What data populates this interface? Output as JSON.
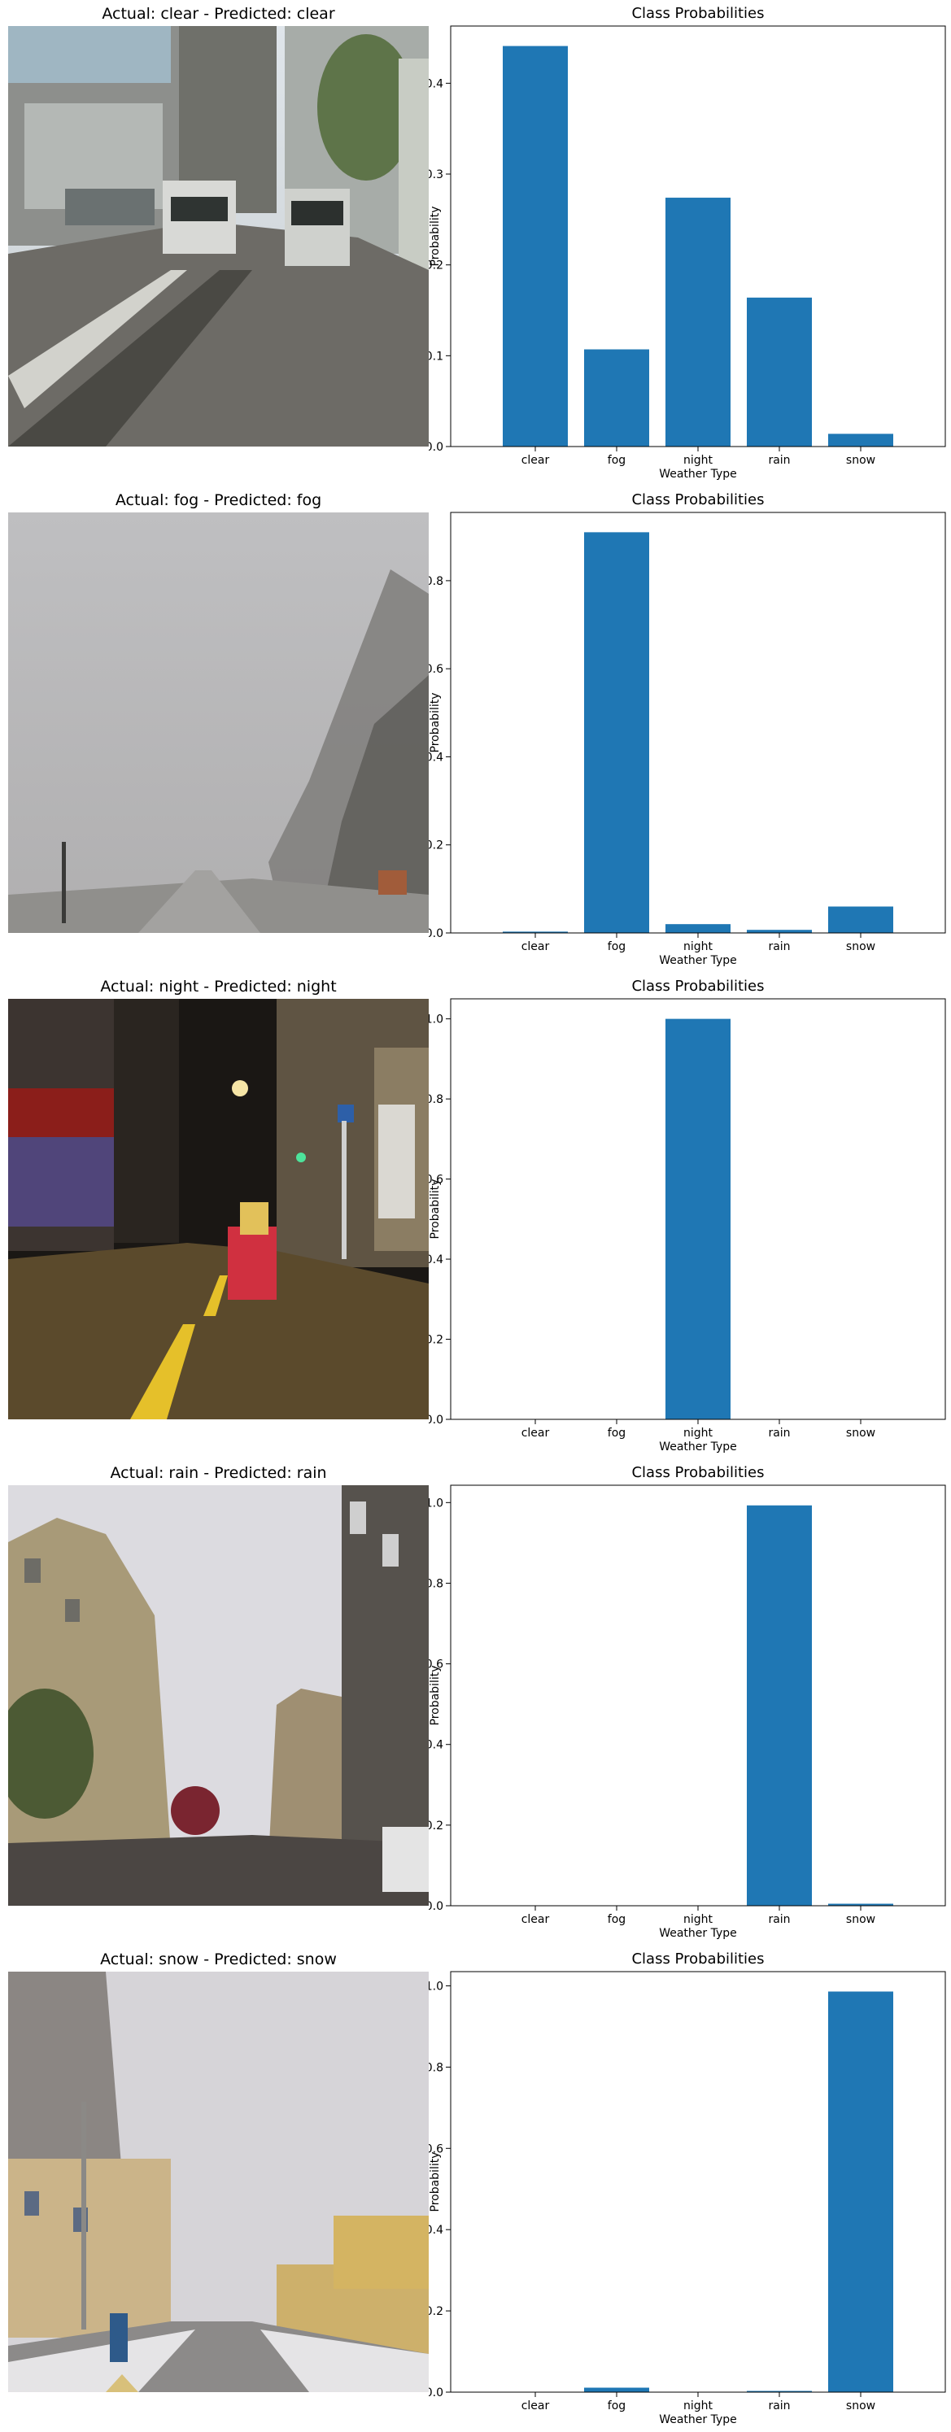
{
  "colors": {
    "bar": "#1f77b4",
    "axis": "#000000"
  },
  "rows": [
    {
      "image_title": "Actual: clear - Predicted: clear",
      "scene": "city street, clear daylight, cars",
      "chart_data": {
        "type": "bar",
        "title": "Class Probabilities",
        "xlabel": "Weather Type",
        "ylabel": "Probability",
        "categories": [
          "clear",
          "fog",
          "night",
          "rain",
          "snow"
        ],
        "values": [
          0.441,
          0.107,
          0.274,
          0.164,
          0.014
        ],
        "ylim": [
          0,
          0.463
        ],
        "yticks": [
          0.0,
          0.1,
          0.2,
          0.3,
          0.4
        ],
        "ytick_labels": [
          "0.0",
          "0.1",
          "0.2",
          "0.3",
          "0.4"
        ],
        "grid": false
      }
    },
    {
      "image_title": "Actual: fog - Predicted: fog",
      "scene": "foggy road with trees",
      "chart_data": {
        "type": "bar",
        "title": "Class Probabilities",
        "xlabel": "Weather Type",
        "ylabel": "Probability",
        "categories": [
          "clear",
          "fog",
          "night",
          "rain",
          "snow"
        ],
        "values": [
          0.003,
          0.91,
          0.02,
          0.007,
          0.06
        ],
        "ylim": [
          0,
          0.955
        ],
        "yticks": [
          0.0,
          0.2,
          0.4,
          0.6,
          0.8
        ],
        "ytick_labels": [
          "0.0",
          "0.2",
          "0.4",
          "0.6",
          "0.8"
        ],
        "grid": false
      }
    },
    {
      "image_title": "Actual: night - Predicted: night",
      "scene": "city street at night with lights",
      "chart_data": {
        "type": "bar",
        "title": "Class Probabilities",
        "xlabel": "Weather Type",
        "ylabel": "Probability",
        "categories": [
          "clear",
          "fog",
          "night",
          "rain",
          "snow"
        ],
        "values": [
          0.0,
          0.0,
          1.0,
          0.0,
          0.0
        ],
        "ylim": [
          0,
          1.05
        ],
        "yticks": [
          0.0,
          0.2,
          0.4,
          0.6,
          0.8,
          1.0
        ],
        "ytick_labels": [
          "0.0",
          "0.2",
          "0.4",
          "0.6",
          "0.8",
          "1.0"
        ],
        "grid": false
      }
    },
    {
      "image_title": "Actual: rain - Predicted: rain",
      "scene": "rainy street with buildings",
      "chart_data": {
        "type": "bar",
        "title": "Class Probabilities",
        "xlabel": "Weather Type",
        "ylabel": "Probability",
        "categories": [
          "clear",
          "fog",
          "night",
          "rain",
          "snow"
        ],
        "values": [
          0.0,
          0.0,
          0.0,
          0.993,
          0.005
        ],
        "ylim": [
          0,
          1.043
        ],
        "yticks": [
          0.0,
          0.2,
          0.4,
          0.6,
          0.8,
          1.0
        ],
        "ytick_labels": [
          "0.0",
          "0.2",
          "0.4",
          "0.6",
          "0.8",
          "1.0"
        ],
        "grid": false
      }
    },
    {
      "image_title": "Actual: snow - Predicted: snow",
      "scene": "snowy street with buildings",
      "chart_data": {
        "type": "bar",
        "title": "Class Probabilities",
        "xlabel": "Weather Type",
        "ylabel": "Probability",
        "categories": [
          "clear",
          "fog",
          "night",
          "rain",
          "snow"
        ],
        "values": [
          0.0,
          0.011,
          0.0,
          0.003,
          0.986
        ],
        "ylim": [
          0,
          1.035
        ],
        "yticks": [
          0.0,
          0.2,
          0.4,
          0.6,
          0.8,
          1.0
        ],
        "ytick_labels": [
          "0.0",
          "0.2",
          "0.4",
          "0.6",
          "0.8",
          "1.0"
        ],
        "grid": false
      }
    }
  ]
}
